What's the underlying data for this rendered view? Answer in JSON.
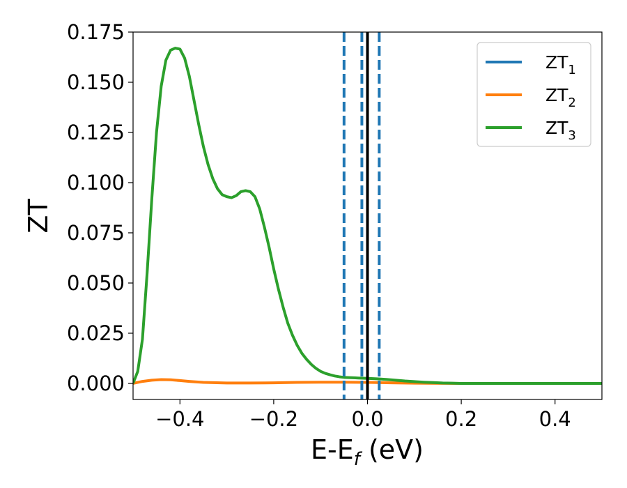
{
  "chart_data": {
    "type": "line",
    "xlabel": "E-E",
    "xlabel_sub": "f",
    "xlabel_unit": " (eV)",
    "ylabel": "ZT",
    "xlim": [
      -0.5,
      0.5
    ],
    "ylim": [
      -0.008,
      0.175
    ],
    "xticks": [
      -0.4,
      -0.2,
      0.0,
      0.2,
      0.4
    ],
    "xtick_labels": [
      "−0.4",
      "−0.2",
      "0.0",
      "0.2",
      "0.4"
    ],
    "yticks": [
      0.0,
      0.025,
      0.05,
      0.075,
      0.1,
      0.125,
      0.15,
      0.175
    ],
    "ytick_labels": [
      "0.000",
      "0.025",
      "0.050",
      "0.075",
      "0.100",
      "0.125",
      "0.150",
      "0.175"
    ],
    "grid": false,
    "legend_position": "top-right",
    "series": [
      {
        "name": "ZT",
        "name_sub": "1",
        "color": "#1f77b4",
        "x": [],
        "y": []
      },
      {
        "name": "ZT",
        "name_sub": "2",
        "color": "#ff7f0e",
        "x": [
          -0.5,
          -0.48,
          -0.46,
          -0.44,
          -0.42,
          -0.4,
          -0.38,
          -0.35,
          -0.3,
          -0.25,
          -0.2,
          -0.15,
          -0.1,
          -0.05,
          0.0,
          0.05,
          0.1,
          0.2,
          0.3,
          0.4,
          0.5
        ],
        "y": [
          0.0,
          0.001,
          0.0016,
          0.0019,
          0.0018,
          0.0014,
          0.001,
          0.0005,
          0.0002,
          0.0002,
          0.0003,
          0.0005,
          0.0006,
          0.0006,
          0.0005,
          0.0003,
          0.0001,
          0.0,
          0.0,
          0.0,
          0.0
        ]
      },
      {
        "name": "ZT",
        "name_sub": "3",
        "color": "#2ca02c",
        "x": [
          -0.5,
          -0.49,
          -0.48,
          -0.47,
          -0.46,
          -0.45,
          -0.44,
          -0.43,
          -0.42,
          -0.41,
          -0.4,
          -0.39,
          -0.38,
          -0.37,
          -0.36,
          -0.35,
          -0.34,
          -0.33,
          -0.32,
          -0.31,
          -0.3,
          -0.29,
          -0.28,
          -0.27,
          -0.26,
          -0.25,
          -0.24,
          -0.23,
          -0.22,
          -0.21,
          -0.2,
          -0.19,
          -0.18,
          -0.17,
          -0.16,
          -0.15,
          -0.14,
          -0.13,
          -0.12,
          -0.11,
          -0.1,
          -0.09,
          -0.08,
          -0.07,
          -0.06,
          -0.05,
          -0.04,
          -0.03,
          -0.02,
          -0.01,
          0.0,
          0.02,
          0.04,
          0.06,
          0.08,
          0.1,
          0.12,
          0.14,
          0.16,
          0.18,
          0.2,
          0.25,
          0.3,
          0.35,
          0.4,
          0.45,
          0.5
        ],
        "y": [
          0.0,
          0.006,
          0.022,
          0.055,
          0.092,
          0.125,
          0.148,
          0.161,
          0.166,
          0.167,
          0.1665,
          0.162,
          0.153,
          0.141,
          0.129,
          0.118,
          0.109,
          0.102,
          0.097,
          0.094,
          0.093,
          0.0925,
          0.0935,
          0.0955,
          0.096,
          0.0955,
          0.093,
          0.087,
          0.078,
          0.068,
          0.057,
          0.047,
          0.038,
          0.03,
          0.024,
          0.019,
          0.015,
          0.012,
          0.0095,
          0.0075,
          0.006,
          0.005,
          0.0043,
          0.0037,
          0.0033,
          0.003,
          0.0029,
          0.0028,
          0.0027,
          0.0026,
          0.0025,
          0.0023,
          0.002,
          0.0016,
          0.0012,
          0.0009,
          0.0006,
          0.0004,
          0.0002,
          0.0001,
          0.0,
          0.0,
          0.0,
          0.0,
          0.0,
          0.0,
          0.0
        ]
      }
    ],
    "reference_lines": [
      {
        "x": -0.05,
        "color": "#1f77b4",
        "style": "dashed"
      },
      {
        "x": -0.012,
        "color": "#1f77b4",
        "style": "dashed"
      },
      {
        "x": 0.0,
        "color": "#000000",
        "style": "solid"
      },
      {
        "x": 0.025,
        "color": "#1f77b4",
        "style": "dashed"
      }
    ]
  }
}
